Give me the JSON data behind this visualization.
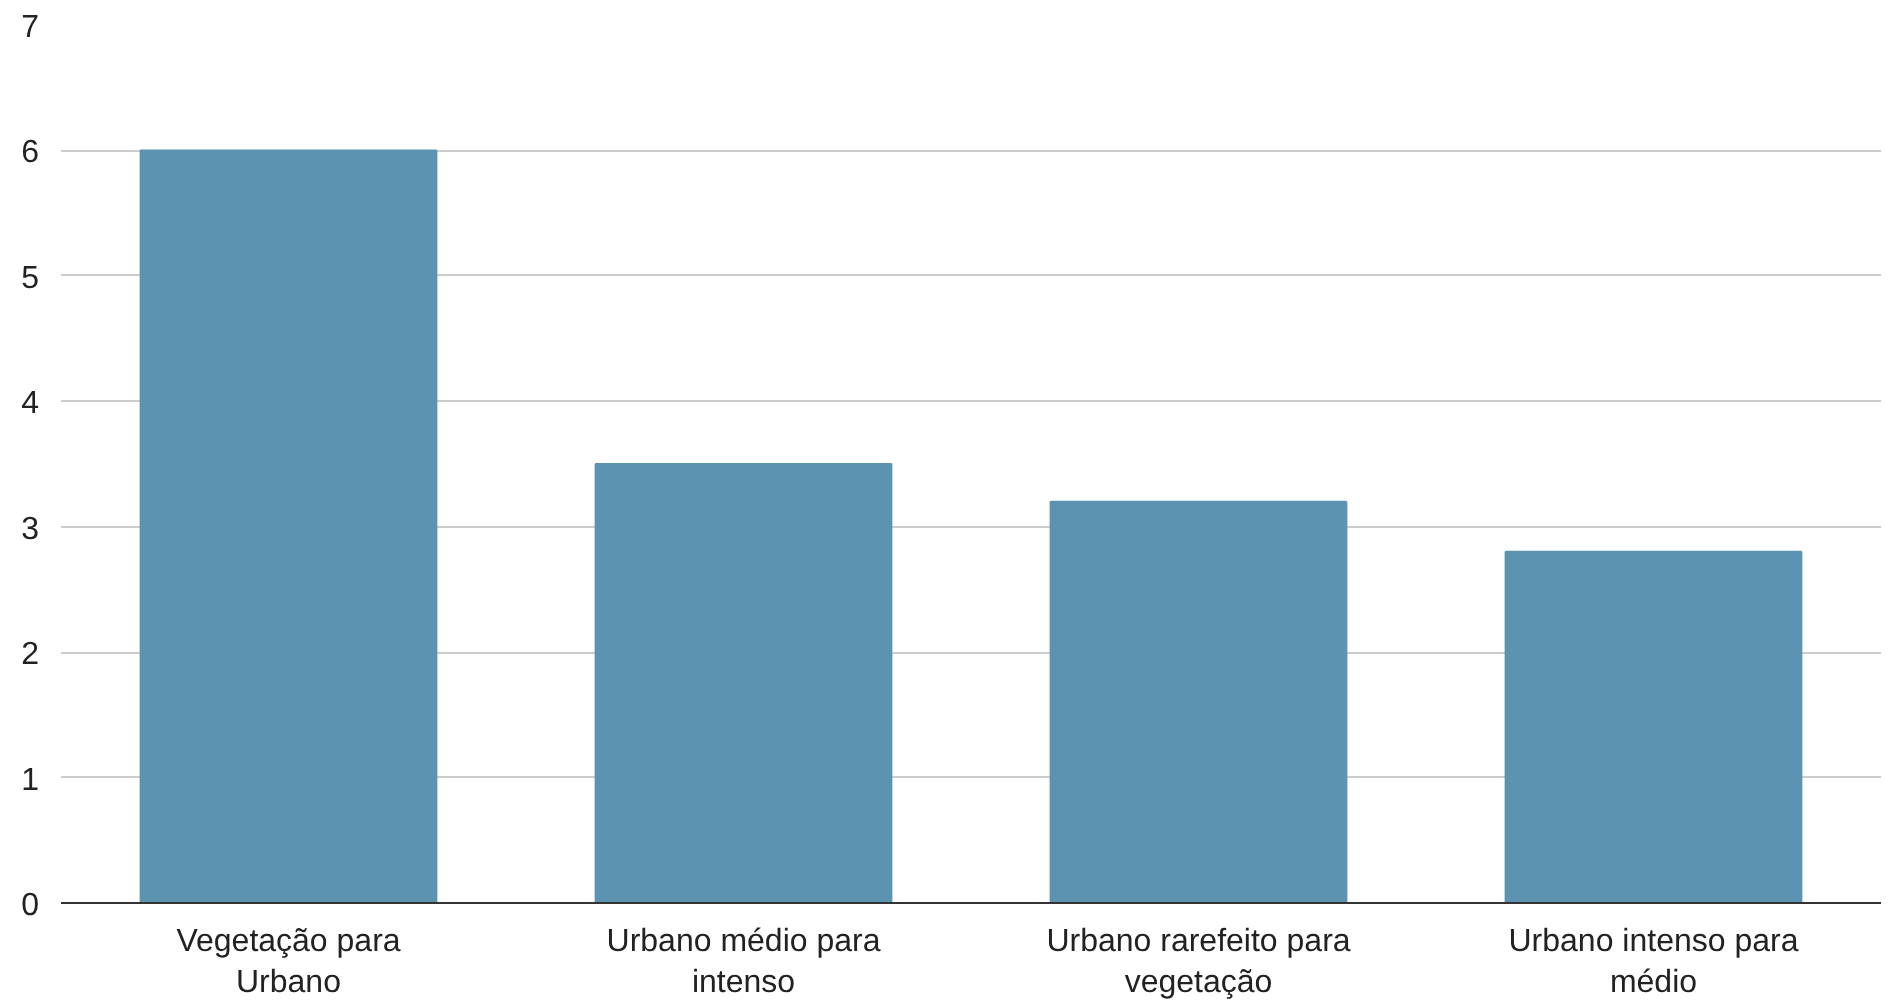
{
  "chart_data": {
    "type": "bar",
    "categories": [
      "Vegetação para Urbano",
      "Urbano médio para intenso",
      "Urbano rarefeito para vegetação",
      "Urbano intenso para médio"
    ],
    "values": [
      6,
      3.5,
      3.2,
      2.8
    ],
    "color": "#5b93b0",
    "ylim": [
      0,
      7
    ],
    "yticks": [
      0,
      1,
      2,
      3,
      4,
      5,
      6,
      7
    ],
    "grid": "y"
  }
}
